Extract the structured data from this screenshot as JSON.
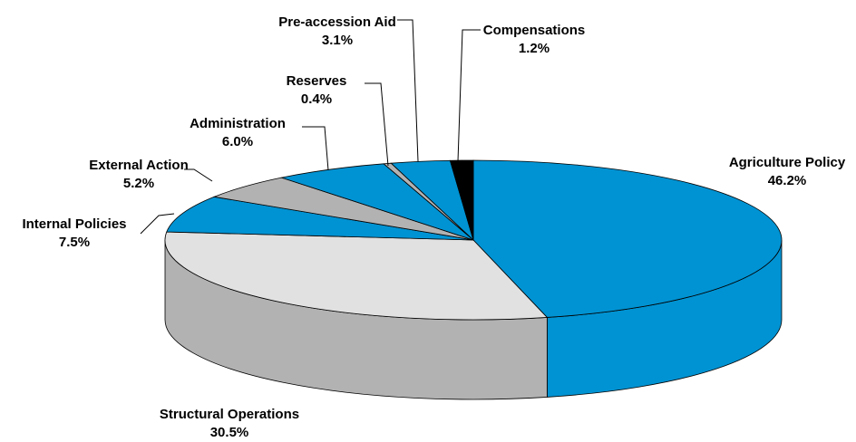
{
  "chart_data": {
    "type": "pie",
    "categories": [
      "Agriculture Policy",
      "Structural Operations",
      "Internal Policies",
      "External Action",
      "Administration",
      "Reserves",
      "Pre-accession Aid",
      "Compensations"
    ],
    "values": [
      46.2,
      30.5,
      7.5,
      5.2,
      6.0,
      0.4,
      3.1,
      1.2
    ],
    "value_labels": [
      "46.2%",
      "30.5%",
      "7.5%",
      "5.2%",
      "6.0%",
      "0.4%",
      "3.1%",
      "1.2%"
    ],
    "colors": [
      "#0093d3",
      "#e1e1e1",
      "#0093d3",
      "#b2b2b2",
      "#0093d3",
      "#b2b2b2",
      "#0093d3",
      "#000000"
    ],
    "side_colors": [
      "#0093d3",
      "#b2b2b2",
      "#0093d3",
      "#b2b2b2",
      "#0093d3",
      "#b2b2b2",
      "#0093d3",
      "#000000"
    ]
  }
}
